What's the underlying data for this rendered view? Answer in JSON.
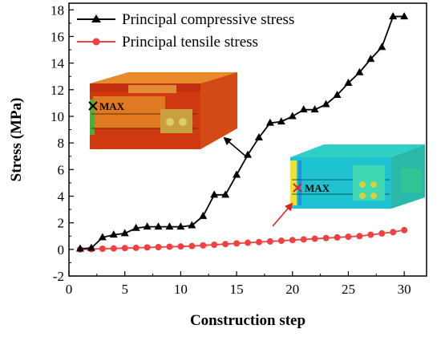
{
  "chart_data": {
    "type": "line",
    "xlabel": "Construction step",
    "ylabel": "Stress (MPa)",
    "xlim": [
      0,
      32
    ],
    "ylim": [
      -2,
      18.5
    ],
    "xticks": [
      0,
      5,
      10,
      15,
      20,
      25,
      30
    ],
    "yticks": [
      -2,
      0,
      2,
      4,
      6,
      8,
      10,
      12,
      14,
      16,
      18
    ],
    "legend_position": "top-left",
    "series": [
      {
        "name": "Principal compressive stress",
        "color": "#000000",
        "marker": "triangle",
        "x": [
          1,
          2,
          3,
          4,
          5,
          6,
          7,
          8,
          9,
          10,
          11,
          12,
          13,
          14,
          15,
          16,
          17,
          18,
          19,
          20,
          21,
          22,
          23,
          24,
          25,
          26,
          27,
          28,
          29,
          30
        ],
        "values": [
          0.05,
          0.1,
          0.9,
          1.1,
          1.2,
          1.6,
          1.7,
          1.7,
          1.7,
          1.7,
          1.8,
          2.5,
          4.1,
          4.1,
          5.6,
          7.1,
          8.4,
          9.5,
          9.6,
          10.0,
          10.5,
          10.5,
          10.9,
          11.6,
          12.5,
          13.3,
          14.3,
          15.2,
          17.5,
          17.5
        ]
      },
      {
        "name": "Principal tensile stress",
        "color": "#f04040",
        "marker": "circle",
        "x": [
          1,
          2,
          3,
          4,
          5,
          6,
          7,
          8,
          9,
          10,
          11,
          12,
          13,
          14,
          15,
          16,
          17,
          18,
          19,
          20,
          21,
          22,
          23,
          24,
          25,
          26,
          27,
          28,
          29,
          30
        ],
        "values": [
          0.0,
          0.02,
          0.05,
          0.07,
          0.1,
          0.12,
          0.15,
          0.17,
          0.2,
          0.22,
          0.25,
          0.3,
          0.35,
          0.4,
          0.45,
          0.5,
          0.55,
          0.6,
          0.65,
          0.7,
          0.75,
          0.8,
          0.85,
          0.9,
          0.95,
          1.0,
          1.1,
          1.2,
          1.3,
          1.45
        ]
      }
    ],
    "annotations": [
      {
        "text": "MAX",
        "color": "#000000",
        "for_series": "Principal compressive stress"
      },
      {
        "text": "MAX",
        "color": "#e02020",
        "for_series": "Principal tensile stress"
      }
    ]
  }
}
